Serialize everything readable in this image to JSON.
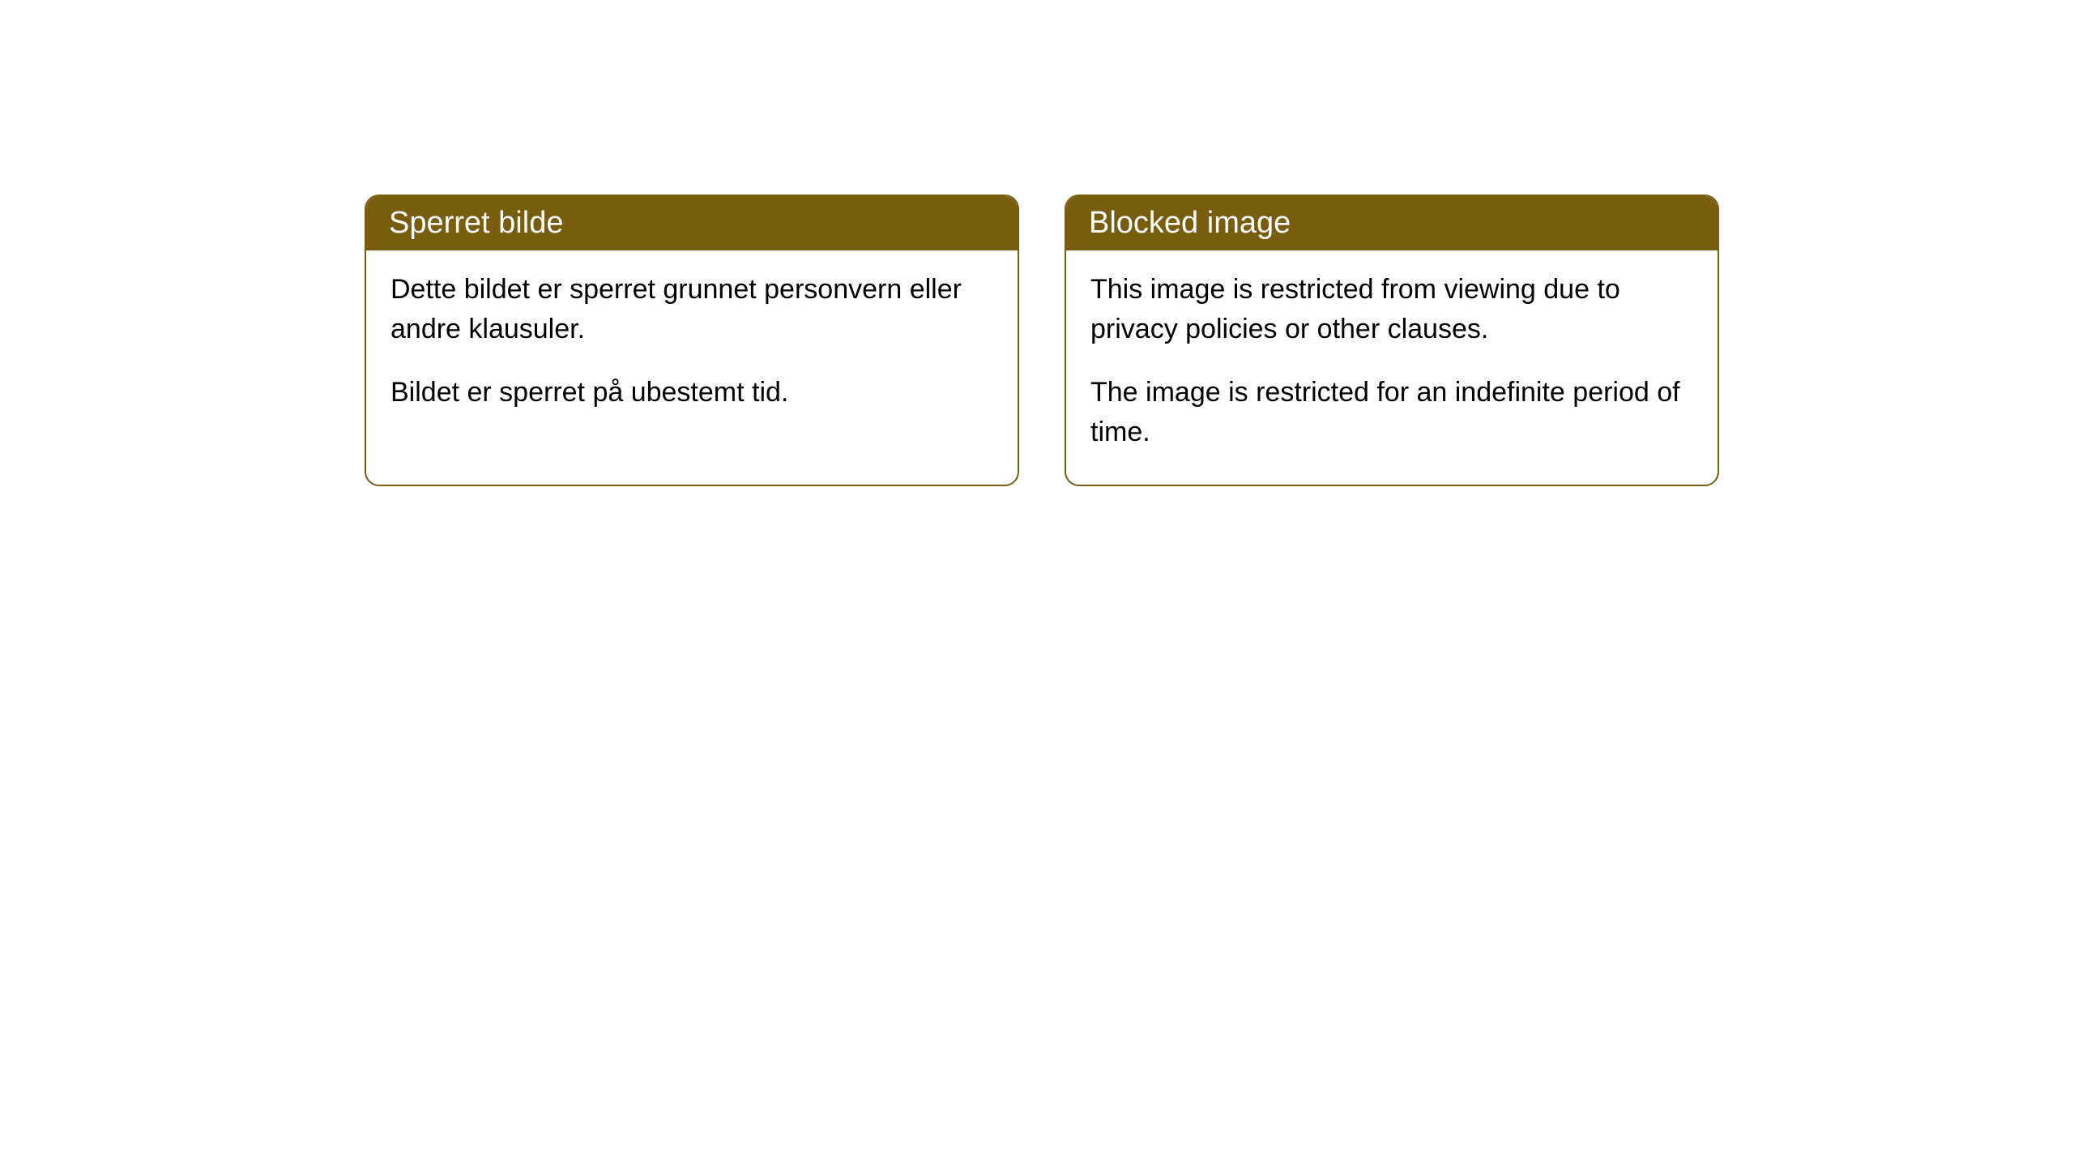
{
  "cards": [
    {
      "title": "Sperret bilde",
      "paragraph1": "Dette bildet er sperret grunnet personvern eller andre klausuler.",
      "paragraph2": "Bildet er sperret på ubestemt tid."
    },
    {
      "title": "Blocked image",
      "paragraph1": "This image is restricted from viewing due to privacy policies or other clauses.",
      "paragraph2": "The image is restricted for an indefinite period of time."
    }
  ],
  "style": {
    "header_bg": "#785d0f",
    "header_text_color": "#ffffff",
    "border_color": "#785d0f",
    "body_bg": "#ffffff",
    "body_text_color": "#000000",
    "border_radius": 18,
    "title_fontsize": 38,
    "body_fontsize": 34
  }
}
